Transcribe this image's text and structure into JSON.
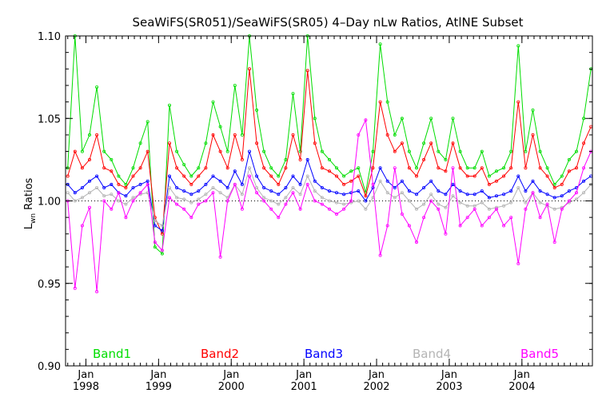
{
  "chart_data": {
    "type": "line",
    "title": "SeaWiFS(SR051)/SeaWiFS(SR05) 4–Day nLw Ratios, AtlNE Subset",
    "ylabel_main": "L",
    "ylabel_sub": "wn",
    "ylabel_rest": " Ratios",
    "xlabel": "",
    "ylim": [
      0.9,
      1.1
    ],
    "xlim": [
      1997.72,
      2004.97
    ],
    "reference_line": 1.0,
    "y_ticks": [
      {
        "value": 0.9,
        "label": "0.90"
      },
      {
        "value": 0.95,
        "label": "0.95"
      },
      {
        "value": 1.0,
        "label": "1.00"
      },
      {
        "value": 1.05,
        "label": "1.05"
      },
      {
        "value": 1.1,
        "label": "1.10"
      }
    ],
    "x_ticks": [
      {
        "value": 1998.0,
        "month": "Jan",
        "year": "1998"
      },
      {
        "value": 1999.0,
        "month": "Jan",
        "year": "1999"
      },
      {
        "value": 2000.0,
        "month": "Jan",
        "year": "2000"
      },
      {
        "value": 2001.0,
        "month": "Jan",
        "year": "2001"
      },
      {
        "value": 2002.0,
        "month": "Jan",
        "year": "2002"
      },
      {
        "value": 2003.0,
        "month": "Jan",
        "year": "2003"
      },
      {
        "value": 2004.0,
        "month": "Jan",
        "year": "2004"
      }
    ],
    "legend_placement": "bottom, inside plot",
    "series": [
      {
        "name": "Band1",
        "color": "#00dd00",
        "x": [
          1997.75,
          1997.85,
          1997.95,
          1998.05,
          1998.15,
          1998.25,
          1998.35,
          1998.45,
          1998.55,
          1998.65,
          1998.75,
          1998.85,
          1998.95,
          1999.05,
          1999.15,
          1999.25,
          1999.35,
          1999.45,
          1999.55,
          1999.65,
          1999.75,
          1999.85,
          1999.95,
          2000.05,
          2000.15,
          2000.25,
          2000.35,
          2000.45,
          2000.55,
          2000.65,
          2000.75,
          2000.85,
          2000.95,
          2001.05,
          2001.15,
          2001.25,
          2001.35,
          2001.45,
          2001.55,
          2001.65,
          2001.75,
          2001.85,
          2001.95,
          2002.05,
          2002.15,
          2002.25,
          2002.35,
          2002.45,
          2002.55,
          2002.65,
          2002.75,
          2002.85,
          2002.95,
          2003.05,
          2003.15,
          2003.25,
          2003.35,
          2003.45,
          2003.55,
          2003.65,
          2003.75,
          2003.85,
          2003.95,
          2004.05,
          2004.15,
          2004.25,
          2004.35,
          2004.45,
          2004.55,
          2004.65,
          2004.75,
          2004.85,
          2004.95
        ],
        "y": [
          1.02,
          1.1,
          1.03,
          1.04,
          1.069,
          1.03,
          1.025,
          1.015,
          1.01,
          1.02,
          1.035,
          1.048,
          0.972,
          0.968,
          1.058,
          1.03,
          1.022,
          1.015,
          1.02,
          1.035,
          1.06,
          1.045,
          1.03,
          1.07,
          1.04,
          1.1,
          1.055,
          1.03,
          1.02,
          1.015,
          1.025,
          1.065,
          1.03,
          1.1,
          1.05,
          1.03,
          1.025,
          1.02,
          1.015,
          1.018,
          1.02,
          1.005,
          1.03,
          1.095,
          1.06,
          1.04,
          1.05,
          1.03,
          1.02,
          1.035,
          1.05,
          1.03,
          1.025,
          1.05,
          1.03,
          1.02,
          1.02,
          1.03,
          1.015,
          1.018,
          1.02,
          1.03,
          1.094,
          1.03,
          1.055,
          1.03,
          1.02,
          1.01,
          1.015,
          1.025,
          1.03,
          1.05,
          1.08
        ]
      },
      {
        "name": "Band2",
        "color": "#ff0000",
        "x": [
          1997.75,
          1997.85,
          1997.95,
          1998.05,
          1998.15,
          1998.25,
          1998.35,
          1998.45,
          1998.55,
          1998.65,
          1998.75,
          1998.85,
          1998.95,
          1999.05,
          1999.15,
          1999.25,
          1999.35,
          1999.45,
          1999.55,
          1999.65,
          1999.75,
          1999.85,
          1999.95,
          2000.05,
          2000.15,
          2000.25,
          2000.35,
          2000.45,
          2000.55,
          2000.65,
          2000.75,
          2000.85,
          2000.95,
          2001.05,
          2001.15,
          2001.25,
          2001.35,
          2001.45,
          2001.55,
          2001.65,
          2001.75,
          2001.85,
          2001.95,
          2002.05,
          2002.15,
          2002.25,
          2002.35,
          2002.45,
          2002.55,
          2002.65,
          2002.75,
          2002.85,
          2002.95,
          2003.05,
          2003.15,
          2003.25,
          2003.35,
          2003.45,
          2003.55,
          2003.65,
          2003.75,
          2003.85,
          2003.95,
          2004.05,
          2004.15,
          2004.25,
          2004.35,
          2004.45,
          2004.55,
          2004.65,
          2004.75,
          2004.85,
          2004.95
        ],
        "y": [
          1.015,
          1.03,
          1.02,
          1.025,
          1.04,
          1.02,
          1.018,
          1.01,
          1.008,
          1.015,
          1.02,
          1.03,
          0.99,
          0.98,
          1.035,
          1.02,
          1.015,
          1.01,
          1.015,
          1.02,
          1.04,
          1.03,
          1.02,
          1.04,
          1.025,
          1.08,
          1.035,
          1.02,
          1.015,
          1.01,
          1.02,
          1.04,
          1.025,
          1.079,
          1.035,
          1.02,
          1.018,
          1.015,
          1.01,
          1.012,
          1.015,
          1.003,
          1.02,
          1.06,
          1.04,
          1.03,
          1.035,
          1.02,
          1.015,
          1.025,
          1.035,
          1.02,
          1.018,
          1.035,
          1.02,
          1.015,
          1.015,
          1.02,
          1.01,
          1.012,
          1.015,
          1.02,
          1.06,
          1.02,
          1.04,
          1.02,
          1.015,
          1.008,
          1.01,
          1.018,
          1.02,
          1.035,
          1.045
        ]
      },
      {
        "name": "Band3",
        "color": "#0000ff",
        "x": [
          1997.75,
          1997.85,
          1997.95,
          1998.05,
          1998.15,
          1998.25,
          1998.35,
          1998.45,
          1998.55,
          1998.65,
          1998.75,
          1998.85,
          1998.95,
          1999.05,
          1999.15,
          1999.25,
          1999.35,
          1999.45,
          1999.55,
          1999.65,
          1999.75,
          1999.85,
          1999.95,
          2000.05,
          2000.15,
          2000.25,
          2000.35,
          2000.45,
          2000.55,
          2000.65,
          2000.75,
          2000.85,
          2000.95,
          2001.05,
          2001.15,
          2001.25,
          2001.35,
          2001.45,
          2001.55,
          2001.65,
          2001.75,
          2001.85,
          2001.95,
          2002.05,
          2002.15,
          2002.25,
          2002.35,
          2002.45,
          2002.55,
          2002.65,
          2002.75,
          2002.85,
          2002.95,
          2003.05,
          2003.15,
          2003.25,
          2003.35,
          2003.45,
          2003.55,
          2003.65,
          2003.75,
          2003.85,
          2003.95,
          2004.05,
          2004.15,
          2004.25,
          2004.35,
          2004.45,
          2004.55,
          2004.65,
          2004.75,
          2004.85,
          2004.95
        ],
        "y": [
          1.01,
          1.005,
          1.008,
          1.012,
          1.015,
          1.008,
          1.01,
          1.005,
          1.003,
          1.008,
          1.01,
          1.012,
          0.985,
          0.982,
          1.015,
          1.008,
          1.006,
          1.004,
          1.006,
          1.01,
          1.015,
          1.012,
          1.008,
          1.018,
          1.01,
          1.03,
          1.015,
          1.008,
          1.006,
          1.004,
          1.008,
          1.015,
          1.01,
          1.025,
          1.012,
          1.008,
          1.006,
          1.005,
          1.004,
          1.005,
          1.006,
          1.0,
          1.008,
          1.02,
          1.012,
          1.008,
          1.012,
          1.006,
          1.004,
          1.008,
          1.012,
          1.006,
          1.004,
          1.01,
          1.006,
          1.004,
          1.004,
          1.006,
          1.002,
          1.003,
          1.004,
          1.006,
          1.015,
          1.006,
          1.012,
          1.006,
          1.004,
          1.002,
          1.003,
          1.006,
          1.008,
          1.012,
          1.015
        ]
      },
      {
        "name": "Band4",
        "color": "#b4b4b4",
        "x": [
          1997.75,
          1997.85,
          1997.95,
          1998.05,
          1998.15,
          1998.25,
          1998.35,
          1998.45,
          1998.55,
          1998.65,
          1998.75,
          1998.85,
          1998.95,
          1999.05,
          1999.15,
          1999.25,
          1999.35,
          1999.45,
          1999.55,
          1999.65,
          1999.75,
          1999.85,
          1999.95,
          2000.05,
          2000.15,
          2000.25,
          2000.35,
          2000.45,
          2000.55,
          2000.65,
          2000.75,
          2000.85,
          2000.95,
          2001.05,
          2001.15,
          2001.25,
          2001.35,
          2001.45,
          2001.55,
          2001.65,
          2001.75,
          2001.85,
          2001.95,
          2002.05,
          2002.15,
          2002.25,
          2002.35,
          2002.45,
          2002.55,
          2002.65,
          2002.75,
          2002.85,
          2002.95,
          2003.05,
          2003.15,
          2003.25,
          2003.35,
          2003.45,
          2003.55,
          2003.65,
          2003.75,
          2003.85,
          2003.95,
          2004.05,
          2004.15,
          2004.25,
          2004.35,
          2004.45,
          2004.55,
          2004.65,
          2004.75,
          2004.85,
          2004.95
        ],
        "y": [
          1.005,
          1.0,
          1.002,
          1.005,
          1.008,
          1.003,
          1.004,
          1.0,
          0.998,
          1.002,
          1.004,
          1.005,
          0.988,
          0.985,
          1.008,
          1.002,
          1.001,
          0.999,
          1.001,
          1.004,
          1.008,
          1.005,
          1.002,
          1.01,
          1.004,
          1.02,
          1.008,
          1.002,
          1.0,
          0.998,
          1.002,
          1.008,
          1.004,
          1.015,
          1.006,
          1.002,
          1.0,
          0.999,
          0.998,
          0.999,
          1.0,
          0.995,
          1.002,
          1.012,
          1.005,
          1.002,
          1.005,
          1.0,
          0.995,
          0.998,
          1.004,
          0.998,
          0.996,
          1.003,
          0.999,
          0.997,
          0.997,
          0.999,
          0.995,
          0.996,
          0.997,
          0.999,
          1.008,
          0.999,
          1.005,
          0.999,
          0.997,
          0.995,
          0.996,
          0.999,
          1.001,
          1.005,
          1.01
        ]
      },
      {
        "name": "Band5",
        "color": "#ff00ff",
        "x": [
          1997.75,
          1997.85,
          1997.95,
          1998.05,
          1998.15,
          1998.25,
          1998.35,
          1998.45,
          1998.55,
          1998.65,
          1998.75,
          1998.85,
          1998.95,
          1999.05,
          1999.15,
          1999.25,
          1999.35,
          1999.45,
          1999.55,
          1999.65,
          1999.75,
          1999.85,
          1999.95,
          2000.05,
          2000.15,
          2000.25,
          2000.35,
          2000.45,
          2000.55,
          2000.65,
          2000.75,
          2000.85,
          2000.95,
          2001.05,
          2001.15,
          2001.25,
          2001.35,
          2001.45,
          2001.55,
          2001.65,
          2001.75,
          2001.85,
          2001.95,
          2002.05,
          2002.15,
          2002.25,
          2002.35,
          2002.45,
          2002.55,
          2002.65,
          2002.75,
          2002.85,
          2002.95,
          2003.05,
          2003.15,
          2003.25,
          2003.35,
          2003.45,
          2003.55,
          2003.65,
          2003.75,
          2003.85,
          2003.95,
          2004.05,
          2004.15,
          2004.25,
          2004.35,
          2004.45,
          2004.55,
          2004.65,
          2004.75,
          2004.85,
          2004.95
        ],
        "y": [
          1.0,
          0.947,
          0.985,
          0.996,
          0.945,
          1.0,
          0.995,
          1.005,
          0.99,
          1.0,
          1.005,
          1.01,
          0.975,
          0.97,
          1.002,
          0.998,
          0.995,
          0.99,
          0.998,
          1.0,
          1.005,
          0.966,
          1.0,
          1.01,
          0.995,
          1.015,
          1.005,
          1.0,
          0.995,
          0.99,
          0.998,
          1.005,
          0.995,
          1.01,
          1.0,
          0.998,
          0.995,
          0.992,
          0.995,
          1.0,
          1.04,
          1.049,
          1.01,
          0.967,
          0.985,
          1.02,
          0.992,
          0.985,
          0.975,
          0.99,
          1.0,
          0.995,
          0.98,
          1.02,
          0.985,
          0.99,
          0.995,
          0.985,
          0.99,
          0.995,
          0.985,
          0.99,
          0.962,
          0.995,
          1.005,
          0.99,
          0.998,
          0.975,
          0.995,
          1.0,
          1.005,
          1.02,
          1.03
        ]
      }
    ]
  }
}
